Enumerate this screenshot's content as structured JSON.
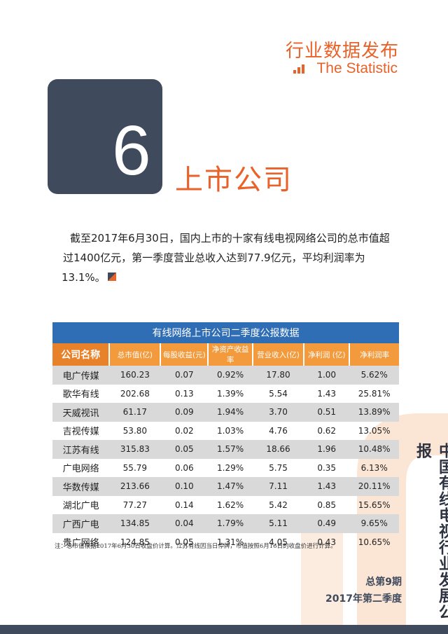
{
  "header": {
    "title": "行业数据发布",
    "subtitle": "The Statistic"
  },
  "section": {
    "number": "6",
    "title": "上市公司"
  },
  "paragraph": [
    "截至2017年6月30日，国内上市的十家有线电视网络公司的总市值超",
    "过1400亿元，第一季度营业总收入达到77.9亿元，平均利润率为13.1%。"
  ],
  "table": {
    "title": "有线网络上市公司二季度公报数据",
    "headers": [
      "公司名称",
      "总市值(亿)",
      "每股收益(元)",
      "净资产收益率",
      "营业收入(亿)",
      "净利润 (亿)",
      "净利润率"
    ],
    "rows": [
      [
        "电广传媒",
        "160.23",
        "0.07",
        "0.92%",
        "17.80",
        "1.00",
        "5.62%"
      ],
      [
        "歌华有线",
        "202.68",
        "0.13",
        "1.39%",
        "5.54",
        "1.43",
        "25.81%"
      ],
      [
        "天威视讯",
        "61.17",
        "0.09",
        "1.94%",
        "3.70",
        "0.51",
        "13.89%"
      ],
      [
        "吉视传媒",
        "53.80",
        "0.02",
        "1.03%",
        "4.76",
        "0.62",
        "13.05%"
      ],
      [
        "江苏有线",
        "315.83",
        "0.05",
        "1.57%",
        "18.66",
        "1.96",
        "10.48%"
      ],
      [
        "广电网络",
        "55.79",
        "0.06",
        "1.29%",
        "5.75",
        "0.35",
        "6.13%"
      ],
      [
        "华数传媒",
        "213.66",
        "0.10",
        "1.47%",
        "7.11",
        "1.43",
        "20.11%"
      ],
      [
        "湖北广电",
        "77.27",
        "0.14",
        "1.62%",
        "5.42",
        "0.85",
        "15.65%"
      ],
      [
        "广西广电",
        "134.85",
        "0.04",
        "1.79%",
        "5.11",
        "0.49",
        "9.65%"
      ],
      [
        "贵广网络",
        "124.85",
        "0.05",
        "1.31%",
        "4.05",
        "0.43",
        "10.65%"
      ]
    ]
  },
  "note": "注：总市值根据2017年6月30日收盘价计算。江苏有线因当日停牌，市值按照6月16日的收盘价进行计算。",
  "side_title": "中国有线电视行业发展公报",
  "footer": {
    "issue": "总第9期",
    "season": "2017年第二季度"
  }
}
